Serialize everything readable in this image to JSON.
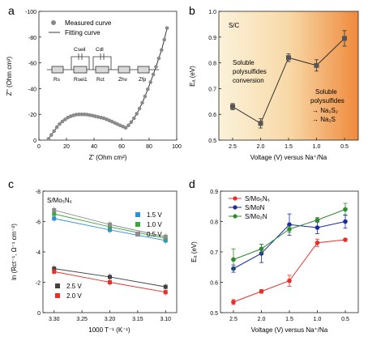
{
  "panels": {
    "a": {
      "letter": "a",
      "xlabel": "Z' (Ohm cm²)",
      "ylabel": "Z'' (Ohm cm²)",
      "legend": [
        "Measured curve",
        "Fitting curve"
      ],
      "circuit_labels": [
        "Rs",
        "Rsei1",
        "Rct",
        "Zhv",
        "Zfp",
        "Cseil",
        "Cdl"
      ]
    },
    "b": {
      "letter": "b",
      "xlabel": "Voltage (V) versus Na⁺/Na",
      "ylabel": "Eₐ (eV)",
      "tag": "S/C",
      "annotations": [
        "Soluble",
        "polysulfides",
        "conversion",
        "Soluble",
        "polysulfides",
        "→ Na₂S₂",
        "→ Na₂S"
      ]
    },
    "c": {
      "letter": "c",
      "xlabel": "1000 T⁻¹ (K⁻¹)",
      "ylabel": "ln (Rct⁻¹, Ω⁻¹ cm⁻²)",
      "tag": "S/Mo₅N₆"
    },
    "d": {
      "letter": "d",
      "xlabel": "Voltage (V) versus Na⁺/Na",
      "ylabel": "Eₐ (eV)"
    }
  },
  "chart_data": [
    {
      "panel": "a",
      "type": "scatter",
      "xlim": [
        0,
        100
      ],
      "ylim": [
        -100,
        0
      ],
      "xticks": [
        0,
        20,
        40,
        60,
        80,
        100
      ],
      "yticks": [
        0,
        -20,
        -40,
        -60,
        -80,
        -100
      ],
      "series": [
        {
          "name": "Measured curve",
          "x": [
            7,
            9,
            11,
            13,
            15,
            17,
            19,
            21,
            23,
            25,
            27,
            29,
            31,
            33,
            35,
            37,
            39,
            41,
            43,
            45,
            47,
            49,
            51,
            53,
            55,
            57,
            59,
            61,
            63,
            65,
            67,
            69,
            71,
            73,
            75,
            77,
            79,
            81,
            83,
            85,
            87,
            89,
            91,
            93
          ],
          "y": [
            -1,
            -4,
            -7,
            -10,
            -12.5,
            -14.5,
            -16,
            -17.5,
            -18.5,
            -19.2,
            -19.8,
            -20,
            -20,
            -20,
            -19.8,
            -19.4,
            -19,
            -18.5,
            -18,
            -17.5,
            -17,
            -16.2,
            -15.3,
            -14.4,
            -13.4,
            -12.4,
            -11.4,
            -10.5,
            -9.6,
            -11.5,
            -14,
            -17,
            -20.5,
            -24.5,
            -29,
            -34,
            -39.5,
            -45,
            -51,
            -57,
            -63.5,
            -70,
            -78,
            -87
          ]
        }
      ]
    },
    {
      "panel": "b",
      "type": "line",
      "categories": [
        "2.5",
        "2.0",
        "1.5",
        "1.0",
        "0.5"
      ],
      "ylim": [
        0.5,
        1.0
      ],
      "yticks": [
        0.5,
        0.6,
        0.7,
        0.8,
        0.9,
        1.0
      ],
      "series": [
        {
          "values": [
            0.63,
            0.565,
            0.82,
            0.79,
            0.895
          ],
          "errors": [
            0.012,
            0.018,
            0.015,
            0.022,
            0.03
          ]
        }
      ]
    },
    {
      "panel": "c",
      "type": "line",
      "xlim": [
        3.32,
        3.08
      ],
      "ylim": [
        -8,
        0
      ],
      "xticks": [
        "3.30",
        "3.25",
        "3.20",
        "3.15",
        "3.10"
      ],
      "yticks": [
        -8,
        -6,
        -4,
        -2,
        0
      ],
      "x": [
        3.3,
        3.2,
        3.1
      ],
      "series": [
        {
          "name": "1.5 V",
          "color": "#2f8fd8",
          "values": [
            -6.2,
            -5.45,
            -4.75
          ]
        },
        {
          "name": "1.0 V",
          "color": "#3aa83a",
          "values": [
            -6.5,
            -5.65,
            -4.9
          ]
        },
        {
          "name": "0.5 V",
          "color": "#8c8c8c",
          "values": [
            -6.75,
            -5.8,
            -5.0
          ]
        },
        {
          "name": "2.5 V",
          "color": "#404040",
          "values": [
            -2.9,
            -2.35,
            -1.7
          ]
        },
        {
          "name": "2.0 V",
          "color": "#e8302a",
          "values": [
            -2.7,
            -2.0,
            -1.35
          ]
        }
      ]
    },
    {
      "panel": "d",
      "type": "line",
      "categories": [
        "2.5",
        "2.0",
        "1.5",
        "1.0",
        "0.5"
      ],
      "ylim": [
        0.5,
        0.9
      ],
      "yticks": [
        0.5,
        0.6,
        0.7,
        0.8,
        0.9
      ],
      "series": [
        {
          "name": "S/Mo₅N₆",
          "color": "#e8302a",
          "values": [
            0.535,
            0.57,
            0.605,
            0.73,
            0.74
          ],
          "errors": [
            0.008,
            0.006,
            0.018,
            0.012,
            0.004
          ]
        },
        {
          "name": "S/MoN",
          "color": "#1a2aa0",
          "values": [
            0.645,
            0.695,
            0.79,
            0.78,
            0.8
          ],
          "errors": [
            0.012,
            0.03,
            0.035,
            0.02,
            0.022
          ]
        },
        {
          "name": "S/Mo₂N",
          "color": "#2f8a2f",
          "values": [
            0.675,
            0.71,
            0.775,
            0.805,
            0.84
          ],
          "errors": [
            0.035,
            0.015,
            0.01,
            0.008,
            0.02
          ]
        }
      ]
    }
  ]
}
